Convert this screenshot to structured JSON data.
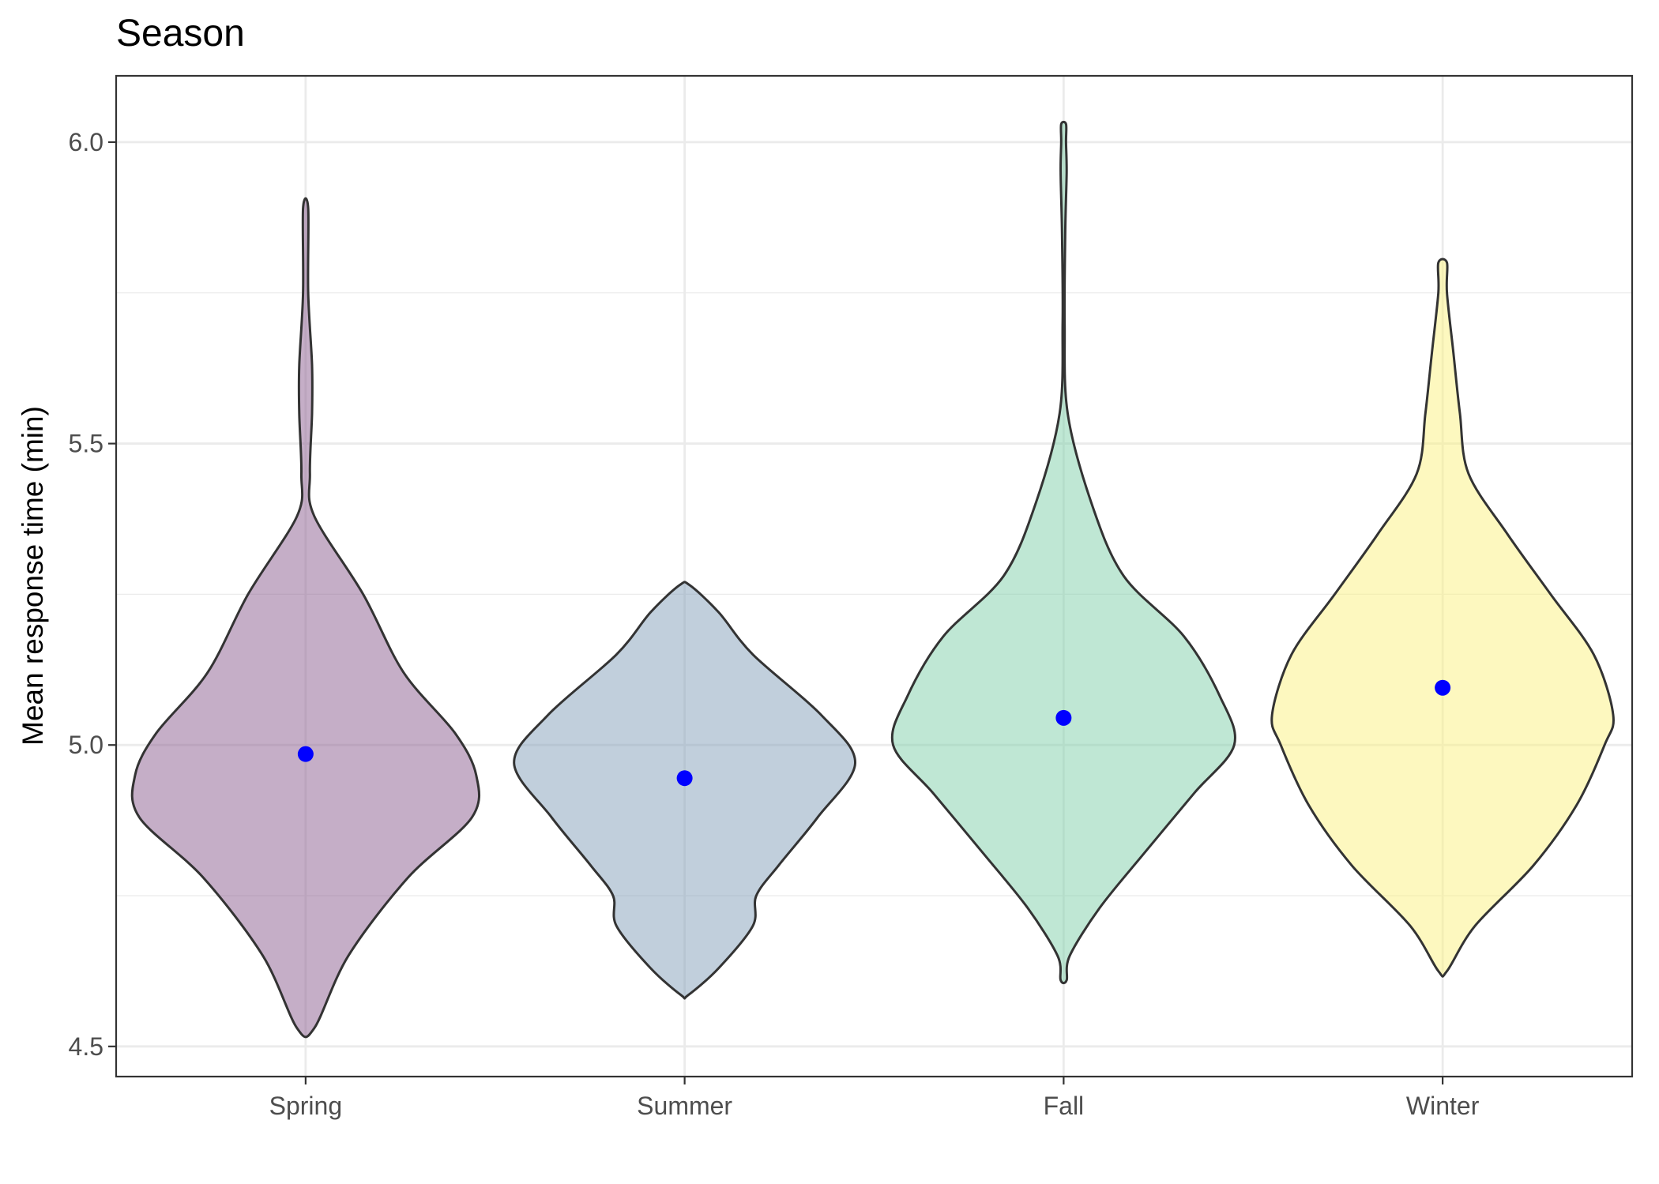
{
  "chart_data": {
    "type": "violin",
    "title": "Season",
    "xlabel": "",
    "ylabel": "Mean response time (min)",
    "ylim": [
      4.45,
      6.11
    ],
    "yticks": [
      4.5,
      5.0,
      5.5,
      6.0
    ],
    "ytick_labels": [
      "4.5",
      "5.0",
      "5.5",
      "6.0"
    ],
    "y_minor_ticks": [
      4.75,
      5.25,
      5.75
    ],
    "grid": true,
    "legend": "none",
    "categories": [
      "Spring",
      "Summer",
      "Fall",
      "Winter"
    ],
    "mean_point_color": "#0000ff",
    "outline_color": "#333333",
    "series": [
      {
        "category": "Spring",
        "color": "#8c5d8f",
        "min": 4.53,
        "max": 5.89,
        "mean": 4.985,
        "density_profile": [
          [
            4.53,
            0.04
          ],
          [
            4.65,
            0.2
          ],
          [
            4.78,
            0.48
          ],
          [
            4.88,
            0.78
          ],
          [
            4.95,
            0.8
          ],
          [
            5.02,
            0.7
          ],
          [
            5.12,
            0.46
          ],
          [
            5.25,
            0.27
          ],
          [
            5.38,
            0.04
          ],
          [
            5.45,
            0.02
          ],
          [
            5.55,
            0.03
          ],
          [
            5.63,
            0.03
          ],
          [
            5.75,
            0.012
          ],
          [
            5.89,
            0.012
          ]
        ]
      },
      {
        "category": "Summer",
        "color": "#83a0b9",
        "min": 4.585,
        "max": 5.265,
        "mean": 4.945,
        "density_profile": [
          [
            4.585,
            0.02
          ],
          [
            4.63,
            0.2
          ],
          [
            4.7,
            0.4
          ],
          [
            4.75,
            0.42
          ],
          [
            4.8,
            0.55
          ],
          [
            4.88,
            0.78
          ],
          [
            4.97,
            1.0
          ],
          [
            5.05,
            0.8
          ],
          [
            5.15,
            0.4
          ],
          [
            5.22,
            0.2
          ],
          [
            5.265,
            0.03
          ]
        ]
      },
      {
        "category": "Fall",
        "color": "#7fcfa9",
        "min": 4.61,
        "max": 6.03,
        "mean": 5.045,
        "density_profile": [
          [
            4.61,
            0.015
          ],
          [
            4.65,
            0.03
          ],
          [
            4.73,
            0.18
          ],
          [
            4.82,
            0.4
          ],
          [
            4.92,
            0.65
          ],
          [
            5.0,
            0.85
          ],
          [
            5.08,
            0.78
          ],
          [
            5.18,
            0.6
          ],
          [
            5.28,
            0.3
          ],
          [
            5.4,
            0.14
          ],
          [
            5.55,
            0.02
          ],
          [
            5.7,
            0.005
          ],
          [
            5.85,
            0.008
          ],
          [
            5.95,
            0.015
          ],
          [
            6.0,
            0.012
          ],
          [
            6.03,
            0.012
          ]
        ]
      },
      {
        "category": "Winter",
        "color": "#fbf17f",
        "min": 4.625,
        "max": 5.8,
        "mean": 5.095,
        "density_profile": [
          [
            4.625,
            0.02
          ],
          [
            4.7,
            0.15
          ],
          [
            4.8,
            0.42
          ],
          [
            4.9,
            0.62
          ],
          [
            5.0,
            0.75
          ],
          [
            5.05,
            0.79
          ],
          [
            5.15,
            0.7
          ],
          [
            5.25,
            0.5
          ],
          [
            5.35,
            0.3
          ],
          [
            5.45,
            0.12
          ],
          [
            5.55,
            0.08
          ],
          [
            5.65,
            0.05
          ],
          [
            5.75,
            0.02
          ],
          [
            5.8,
            0.02
          ]
        ]
      }
    ]
  }
}
